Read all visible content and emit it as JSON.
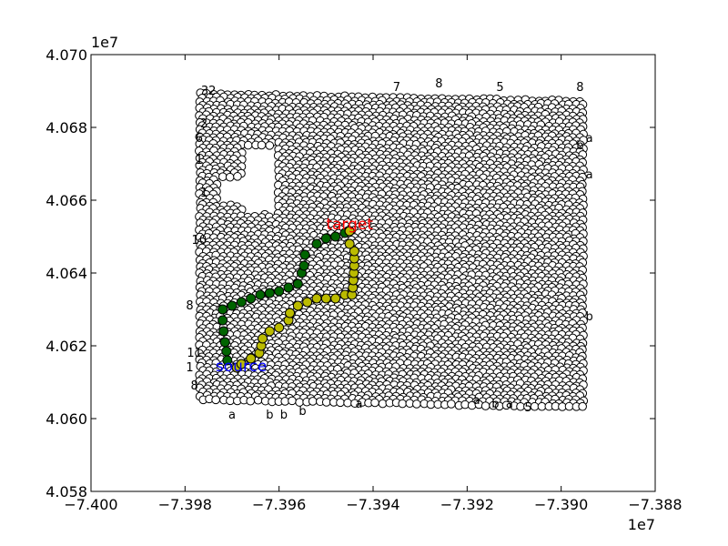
{
  "chart_data": {
    "type": "scatter",
    "title": "",
    "xlabel": "",
    "ylabel": "",
    "xlim": [
      -7.4,
      -7.388
    ],
    "ylim": [
      4.058,
      4.07
    ],
    "x_ticks": [
      "−7.400",
      "−7.398",
      "−7.396",
      "−7.394",
      "−7.392",
      "−7.390",
      "−7.388"
    ],
    "x_tick_values": [
      -7.4,
      -7.398,
      -7.396,
      -7.394,
      -7.392,
      -7.39,
      -7.388
    ],
    "y_ticks": [
      "4.058",
      "4.060",
      "4.062",
      "4.064",
      "4.066",
      "4.068",
      "4.070"
    ],
    "y_tick_values": [
      4.058,
      4.06,
      4.062,
      4.064,
      4.066,
      4.068,
      4.07
    ],
    "x_offset_text": "1e7",
    "y_offset_text": "1e7",
    "grid": false,
    "node_grid_extent": {
      "x": [
        -7.3977,
        -7.3895
      ],
      "y": [
        4.0604,
        4.0688
      ]
    },
    "node_color": "#ffffff",
    "node_edge_color": "#000000",
    "paths": [
      {
        "color": "#006400",
        "points": [
          [
            -7.3971,
            4.0616
          ],
          [
            -7.39712,
            4.06185
          ],
          [
            -7.39715,
            4.0621
          ],
          [
            -7.39718,
            4.0624
          ],
          [
            -7.3972,
            4.0627
          ],
          [
            -7.3972,
            4.063
          ],
          [
            -7.397,
            4.0631
          ],
          [
            -7.3968,
            4.0632
          ],
          [
            -7.3966,
            4.0633
          ],
          [
            -7.3964,
            4.0634
          ],
          [
            -7.3962,
            4.06345
          ],
          [
            -7.396,
            4.0635
          ],
          [
            -7.3958,
            4.0636
          ],
          [
            -7.3956,
            4.0637
          ],
          [
            -7.39552,
            4.064
          ],
          [
            -7.39547,
            4.0642
          ],
          [
            -7.39545,
            4.0645
          ],
          [
            -7.3952,
            4.0648
          ],
          [
            -7.395,
            4.06495
          ],
          [
            -7.3948,
            4.065
          ],
          [
            -7.3946,
            4.0651
          ],
          [
            -7.3945,
            4.06515
          ]
        ]
      },
      {
        "color": "#bbbb00",
        "points": [
          [
            -7.3969,
            4.0614
          ],
          [
            -7.3968,
            4.0615
          ],
          [
            -7.3966,
            4.06165
          ],
          [
            -7.39642,
            4.0618
          ],
          [
            -7.39638,
            4.062
          ],
          [
            -7.39635,
            4.0622
          ],
          [
            -7.3962,
            4.0624
          ],
          [
            -7.396,
            4.0625
          ],
          [
            -7.3958,
            4.0627
          ],
          [
            -7.39577,
            4.0629
          ],
          [
            -7.3956,
            4.0631
          ],
          [
            -7.3954,
            4.0632
          ],
          [
            -7.3952,
            4.0633
          ],
          [
            -7.395,
            4.0633
          ],
          [
            -7.3948,
            4.0633
          ],
          [
            -7.3946,
            4.0634
          ],
          [
            -7.39445,
            4.0634
          ],
          [
            -7.39443,
            4.0636
          ],
          [
            -7.39442,
            4.0638
          ],
          [
            -7.39441,
            4.064
          ],
          [
            -7.3944,
            4.0642
          ],
          [
            -7.3944,
            4.0644
          ],
          [
            -7.3944,
            4.0646
          ],
          [
            -7.3945,
            4.0648
          ],
          [
            -7.3945,
            4.06515
          ]
        ]
      }
    ],
    "annotations": [
      {
        "text": "source",
        "x": -7.39735,
        "y": 4.0613,
        "color": "#0000ff"
      },
      {
        "text": "target",
        "x": -7.395,
        "y": 4.0652,
        "color": "#ff0000"
      }
    ],
    "node_labels": [
      {
        "text": "32",
        "x": -7.3975,
        "y": 4.0689
      },
      {
        "text": "2",
        "x": -7.3976,
        "y": 4.068
      },
      {
        "text": "6",
        "x": -7.3977,
        "y": 4.0676
      },
      {
        "text": "1",
        "x": -7.3977,
        "y": 4.067
      },
      {
        "text": "1",
        "x": -7.3976,
        "y": 4.0661
      },
      {
        "text": "10",
        "x": -7.3977,
        "y": 4.0648
      },
      {
        "text": "8",
        "x": -7.3979,
        "y": 4.063
      },
      {
        "text": "11",
        "x": -7.3978,
        "y": 4.0617
      },
      {
        "text": "1",
        "x": -7.3979,
        "y": 4.0613
      },
      {
        "text": "8",
        "x": -7.3978,
        "y": 4.0608
      },
      {
        "text": "a",
        "x": -7.397,
        "y": 4.06
      },
      {
        "text": "b",
        "x": -7.3962,
        "y": 4.06
      },
      {
        "text": "b",
        "x": -7.3959,
        "y": 4.06
      },
      {
        "text": "b",
        "x": -7.3955,
        "y": 4.0601
      },
      {
        "text": "a",
        "x": -7.3943,
        "y": 4.0603
      },
      {
        "text": "a",
        "x": -7.3918,
        "y": 4.0604
      },
      {
        "text": "b",
        "x": -7.3914,
        "y": 4.0603
      },
      {
        "text": "a",
        "x": -7.3911,
        "y": 4.0603
      },
      {
        "text": "5",
        "x": -7.3907,
        "y": 4.0602
      },
      {
        "text": "b",
        "x": -7.3894,
        "y": 4.0627
      },
      {
        "text": "a",
        "x": -7.3894,
        "y": 4.0676
      },
      {
        "text": "b",
        "x": -7.3896,
        "y": 4.0674
      },
      {
        "text": "a",
        "x": -7.3894,
        "y": 4.0666
      },
      {
        "text": "8",
        "x": -7.3896,
        "y": 4.069
      },
      {
        "text": "5",
        "x": -7.3913,
        "y": 4.069
      },
      {
        "text": "8",
        "x": -7.3926,
        "y": 4.0691
      },
      {
        "text": "7",
        "x": -7.3935,
        "y": 4.069
      }
    ]
  }
}
